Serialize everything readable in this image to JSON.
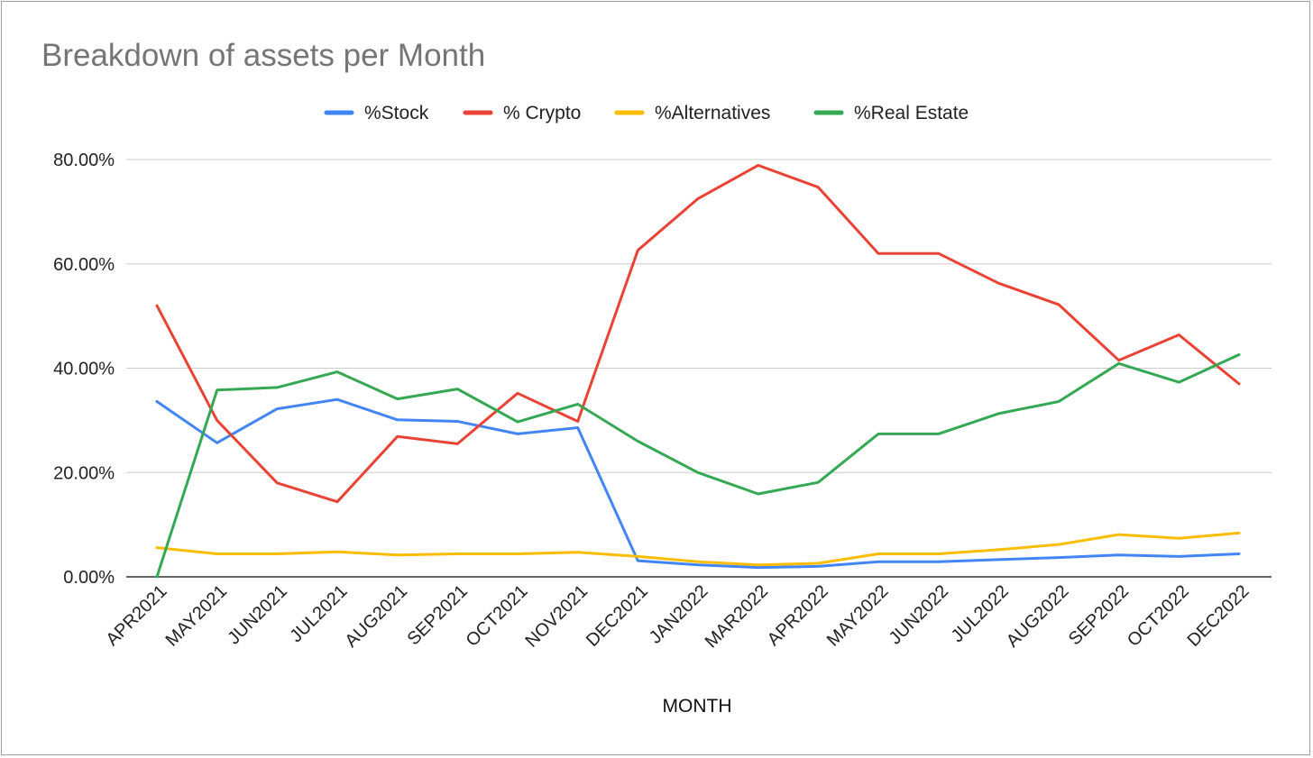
{
  "chart_data": {
    "type": "line",
    "title": "Breakdown of assets per Month",
    "xlabel": "MONTH",
    "ylabel": "",
    "ylim": [
      0,
      80
    ],
    "yticks": [
      "0.00%",
      "20.00%",
      "40.00%",
      "60.00%",
      "80.00%"
    ],
    "ytick_values": [
      0,
      20,
      40,
      60,
      80
    ],
    "grid": true,
    "legend_position": "top",
    "categories": [
      "APR2021",
      "MAY2021",
      "JUN2021",
      "JUL2021",
      "AUG2021",
      "SEP2021",
      "OCT2021",
      "NOV2021",
      "DEC2021",
      "JAN2022",
      "MAR2022",
      "APR2022",
      "MAY2022",
      "JUN2022",
      "JUL2022",
      "AUG2022",
      "SEP2022",
      "OCT2022",
      "DEC2022"
    ],
    "series": [
      {
        "name": "%Stock",
        "color": "#4285f4",
        "values": [
          33.6,
          25.7,
          32.2,
          34.0,
          30.1,
          29.8,
          27.4,
          28.6,
          3.1,
          2.3,
          1.8,
          2.0,
          2.9,
          2.9,
          3.3,
          3.7,
          4.2,
          3.9,
          4.4
        ]
      },
      {
        "name": "% Crypto",
        "color": "#ea4335",
        "values": [
          52.0,
          30.0,
          18.0,
          14.4,
          26.9,
          25.5,
          35.2,
          29.8,
          62.6,
          72.5,
          78.9,
          74.7,
          62.0,
          62.0,
          56.3,
          52.2,
          41.5,
          46.4,
          37.0
        ]
      },
      {
        "name": "%Alternatives",
        "color": "#fbbc04",
        "values": [
          5.6,
          4.4,
          4.4,
          4.8,
          4.2,
          4.4,
          4.4,
          4.7,
          3.9,
          2.9,
          2.3,
          2.6,
          4.4,
          4.4,
          5.2,
          6.2,
          8.1,
          7.4,
          8.4
        ]
      },
      {
        "name": "%Real Estate",
        "color": "#34a853",
        "values": [
          0.0,
          35.8,
          36.3,
          39.3,
          34.1,
          36.0,
          29.7,
          33.1,
          26.0,
          20.0,
          15.9,
          18.1,
          27.4,
          27.4,
          31.3,
          33.6,
          40.9,
          37.3,
          42.6
        ]
      }
    ]
  }
}
